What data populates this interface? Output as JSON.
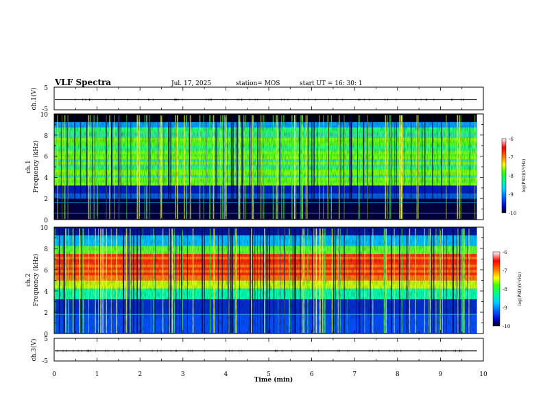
{
  "header": {
    "title": "VLF Spectra",
    "date": "Jul. 17, 2025",
    "station": "station= MOS",
    "start": "start UT = 16: 30: 1"
  },
  "chart_data": {
    "type": "heatmap",
    "x_axis": {
      "label": "Time (min)",
      "range": [
        0,
        10
      ],
      "ticks": [
        "0",
        "1",
        "2",
        "3",
        "4",
        "5",
        "6",
        "7",
        "8",
        "9",
        "10"
      ]
    },
    "panels": [
      {
        "id": "ch1-voltage",
        "ylabel": "ch.1(V)",
        "yrange": [
          -5,
          5
        ],
        "ticks": [
          "5",
          "-5"
        ],
        "trace_level": -0.5
      },
      {
        "id": "ch1-spectrogram",
        "ylabel": "ch.1\nFrequency (kHz)",
        "yrange": [
          0,
          10
        ],
        "ticks": [
          "0",
          "2",
          "4",
          "6",
          "8",
          "10"
        ],
        "profile": "ch1",
        "colorbar": {
          "label": "log(PSD)(V²/Hz)",
          "range": [
            -10,
            -6
          ],
          "ticks": [
            "-6",
            "-7",
            "-8",
            "-9",
            "-10"
          ]
        }
      },
      {
        "id": "ch2-spectrogram",
        "ylabel": "ch.2\nFrequency (kHz)",
        "yrange": [
          0,
          10
        ],
        "ticks": [
          "0",
          "2",
          "4",
          "6",
          "8",
          "10"
        ],
        "profile": "ch2",
        "colorbar": {
          "label": "log(PSD)(V²/Hz)",
          "range": [
            -10,
            -6
          ],
          "ticks": [
            "-6",
            "-7",
            "-8",
            "-9",
            "-10"
          ]
        }
      },
      {
        "id": "ch3-voltage",
        "ylabel": "ch.3(V)",
        "yrange": [
          -5,
          5
        ],
        "ticks": [
          "5",
          "-5"
        ],
        "trace_level": -0.5
      }
    ],
    "data_end_min": 9.85,
    "colormap": [
      "#000080",
      "#0000ff",
      "#00a0ff",
      "#00ffc0",
      "#40ff40",
      "#c0ff00",
      "#ffff00",
      "#ff8000",
      "#ff2000",
      "#ffffff"
    ]
  }
}
